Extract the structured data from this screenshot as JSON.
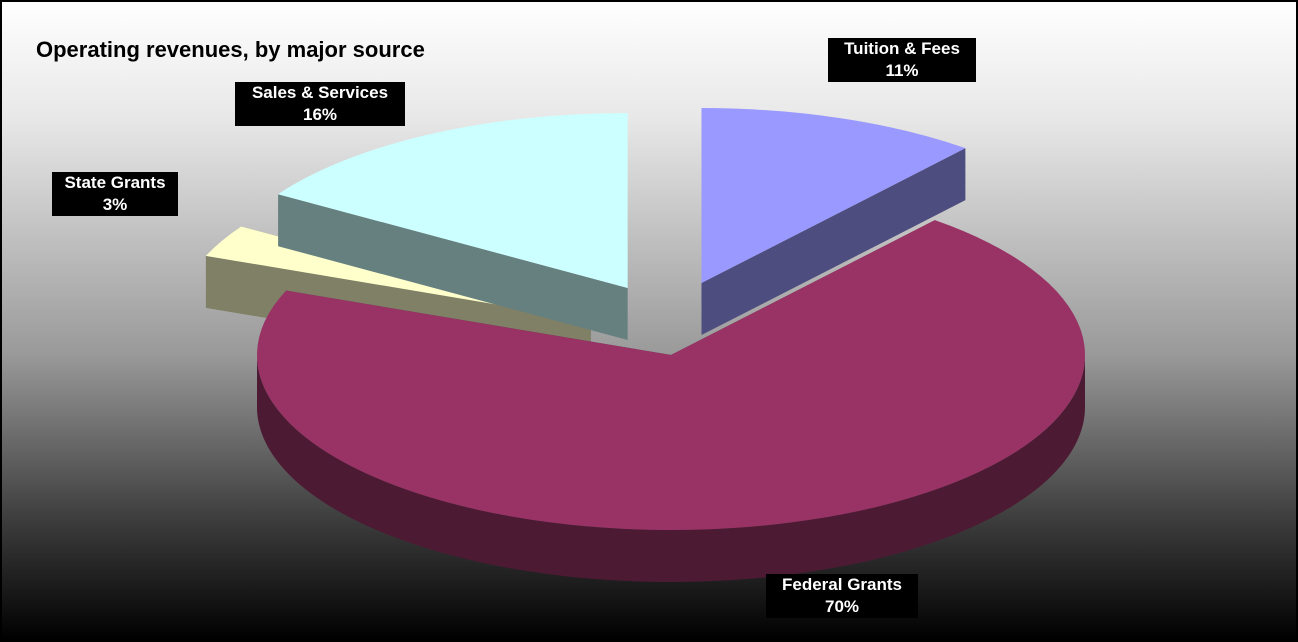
{
  "chart_data": {
    "type": "pie",
    "title": "Operating revenues, by major source",
    "slices": [
      {
        "label": "Tuition & Fees",
        "value": 11,
        "value_label": "11%",
        "color": "#9999ff"
      },
      {
        "label": "Federal Grants",
        "value": 70,
        "value_label": "70%",
        "color": "#993366"
      },
      {
        "label": "State Grants",
        "value": 3,
        "value_label": "3%",
        "color": "#ffffcc"
      },
      {
        "label": "Sales & Services",
        "value": 16,
        "value_label": "16%",
        "color": "#ccffff"
      }
    ],
    "style": "3d exploded pie",
    "legend": "none"
  }
}
